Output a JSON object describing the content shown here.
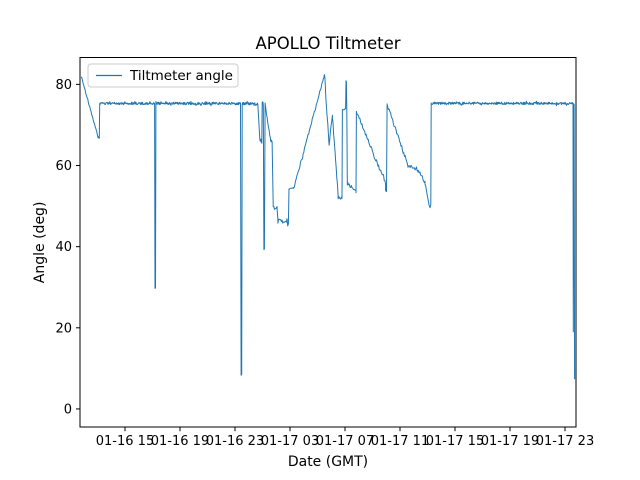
{
  "chart_data": {
    "type": "line",
    "title": "APOLLO Tiltmeter",
    "xlabel": "Date (GMT)",
    "ylabel": "Angle (deg)",
    "legend": [
      "Tiltmeter angle"
    ],
    "legend_position": "upper left",
    "line_color": "#1f77b4",
    "background_color": "#ffffff",
    "grid": false,
    "x_units": "hours since 01-16 00:00 (GMT)",
    "xlim": [
      11.727,
      47.8
    ],
    "ylim": [
      -4.5,
      86.6
    ],
    "xticks": {
      "values": [
        15,
        19,
        23,
        27,
        31,
        35,
        39,
        43,
        47
      ],
      "labels": [
        "01-16 15",
        "01-16 19",
        "01-16 23",
        "01-17 03",
        "01-17 07",
        "01-17 11",
        "01-17 15",
        "01-17 19",
        "01-17 23"
      ]
    },
    "yticks": {
      "values": [
        0,
        20,
        40,
        60,
        80
      ],
      "labels": [
        "0",
        "20",
        "40",
        "60",
        "80"
      ]
    },
    "series": [
      {
        "name": "Tiltmeter angle",
        "segments": [
          {
            "type": "noisy",
            "t0": 11.8,
            "t1": 12.98,
            "v0": 82.2,
            "v1": 67.7,
            "amp": 0.22,
            "step": 0.05
          },
          {
            "type": "pts",
            "pts": [
              [
                12.98,
                67.7
              ],
              [
                13.04,
                66.8
              ],
              [
                13.09,
                67.1
              ],
              [
                13.13,
                66.7
              ],
              [
                13.16,
                75.2
              ]
            ]
          },
          {
            "type": "noisy",
            "t0": 13.16,
            "t1": 17.15,
            "v0": 75.3,
            "v1": 75.3,
            "amp": 0.3,
            "step": 0.028
          },
          {
            "type": "pts",
            "pts": [
              [
                17.15,
                75.3
              ],
              [
                17.18,
                29.7
              ],
              [
                17.22,
                29.8
              ],
              [
                17.25,
                75.3
              ]
            ]
          },
          {
            "type": "noisy",
            "t0": 17.25,
            "t1": 23.4,
            "v0": 75.3,
            "v1": 75.3,
            "amp": 0.3,
            "step": 0.028
          },
          {
            "type": "pts",
            "pts": [
              [
                23.4,
                75.2
              ],
              [
                23.44,
                8.3
              ],
              [
                23.49,
                8.6
              ],
              [
                23.52,
                75.0
              ]
            ]
          },
          {
            "type": "noisy",
            "t0": 23.52,
            "t1": 24.66,
            "v0": 75.2,
            "v1": 75.2,
            "amp": 0.35,
            "step": 0.028
          },
          {
            "type": "pts",
            "pts": [
              [
                24.66,
                75.2
              ],
              [
                24.8,
                66.6
              ]
            ]
          },
          {
            "type": "noisy",
            "t0": 24.8,
            "t1": 24.95,
            "v0": 66.3,
            "v1": 65.9,
            "amp": 0.5,
            "step": 0.04
          },
          {
            "type": "pts",
            "pts": [
              [
                24.95,
                65.9
              ],
              [
                24.98,
                75.6
              ],
              [
                25.03,
                75.7
              ],
              [
                25.06,
                74.9
              ],
              [
                25.1,
                39.3
              ],
              [
                25.14,
                39.4
              ],
              [
                25.19,
                74.8
              ]
            ]
          },
          {
            "type": "noisy",
            "t0": 25.19,
            "t1": 25.58,
            "v0": 74.8,
            "v1": 66.4,
            "amp": 0.45,
            "step": 0.05
          },
          {
            "type": "noisy",
            "t0": 25.58,
            "t1": 25.7,
            "v0": 66.3,
            "v1": 65.9,
            "amp": 0.4,
            "step": 0.04
          },
          {
            "type": "pts",
            "pts": [
              [
                25.7,
                65.9
              ],
              [
                25.78,
                50.3
              ]
            ]
          },
          {
            "type": "noisy",
            "t0": 25.78,
            "t1": 26.06,
            "v0": 49.8,
            "v1": 49.2,
            "amp": 0.75,
            "step": 0.045
          },
          {
            "type": "pts",
            "pts": [
              [
                26.06,
                49.2
              ],
              [
                26.12,
                46.6
              ]
            ]
          },
          {
            "type": "noisy",
            "t0": 26.12,
            "t1": 26.88,
            "v0": 46.2,
            "v1": 45.7,
            "amp": 0.65,
            "step": 0.05
          },
          {
            "type": "pts",
            "pts": [
              [
                26.88,
                45.9
              ],
              [
                26.93,
                54.2
              ]
            ]
          },
          {
            "type": "noisy",
            "t0": 26.93,
            "t1": 27.25,
            "v0": 54.3,
            "v1": 54.0,
            "amp": 0.4,
            "step": 0.05
          },
          {
            "type": "noisy",
            "t0": 27.25,
            "t1": 29.47,
            "v0": 54.0,
            "v1": 81.9,
            "amp": 0.35,
            "step": 0.05
          },
          {
            "type": "pts",
            "pts": [
              [
                29.47,
                81.9
              ],
              [
                29.5,
                82.4
              ],
              [
                29.54,
                81.6
              ]
            ]
          },
          {
            "type": "noisy",
            "t0": 29.56,
            "t1": 29.84,
            "v0": 79.5,
            "v1": 65.0,
            "amp": 0.5,
            "step": 0.045
          },
          {
            "type": "noisy",
            "t0": 29.84,
            "t1": 30.08,
            "v0": 65.0,
            "v1": 72.5,
            "amp": 0.4,
            "step": 0.045
          },
          {
            "type": "noisy",
            "t0": 30.08,
            "t1": 30.5,
            "v0": 72.5,
            "v1": 52.6,
            "amp": 0.5,
            "step": 0.045
          },
          {
            "type": "noisy",
            "t0": 30.5,
            "t1": 30.78,
            "v0": 52.3,
            "v1": 51.9,
            "amp": 0.4,
            "step": 0.045
          },
          {
            "type": "pts",
            "pts": [
              [
                30.78,
                51.9
              ],
              [
                30.81,
                73.8
              ]
            ]
          },
          {
            "type": "noisy",
            "t0": 30.81,
            "t1": 31.04,
            "v0": 73.7,
            "v1": 74.0,
            "amp": 0.28,
            "step": 0.04
          },
          {
            "type": "pts",
            "pts": [
              [
                31.04,
                74.0
              ],
              [
                31.07,
                80.9
              ],
              [
                31.1,
                80.6
              ],
              [
                31.13,
                73.5
              ],
              [
                31.17,
                56.2
              ]
            ]
          },
          {
            "type": "noisy",
            "t0": 31.17,
            "t1": 31.8,
            "v0": 55.8,
            "v1": 53.3,
            "amp": 0.45,
            "step": 0.05
          },
          {
            "type": "pts",
            "pts": [
              [
                31.8,
                53.3
              ],
              [
                31.83,
                73.3
              ]
            ]
          },
          {
            "type": "noisy",
            "t0": 31.83,
            "t1": 33.95,
            "v0": 73.4,
            "v1": 55.6,
            "amp": 0.5,
            "step": 0.05
          },
          {
            "type": "pts",
            "pts": [
              [
                33.95,
                53.8
              ],
              [
                34.02,
                53.6
              ],
              [
                34.06,
                75.2
              ]
            ]
          },
          {
            "type": "noisy",
            "t0": 34.06,
            "t1": 35.53,
            "v0": 75.2,
            "v1": 60.4,
            "amp": 0.45,
            "step": 0.05
          },
          {
            "type": "noisy",
            "t0": 35.53,
            "t1": 36.3,
            "v0": 59.9,
            "v1": 59.0,
            "amp": 0.45,
            "step": 0.05
          },
          {
            "type": "noisy",
            "t0": 36.3,
            "t1": 36.82,
            "v0": 59.0,
            "v1": 55.9,
            "amp": 0.45,
            "step": 0.05
          },
          {
            "type": "noisy",
            "t0": 36.82,
            "t1": 37.12,
            "v0": 55.9,
            "v1": 50.1,
            "amp": 0.4,
            "step": 0.05
          },
          {
            "type": "pts",
            "pts": [
              [
                37.12,
                50.1
              ],
              [
                37.18,
                49.6
              ],
              [
                37.24,
                50.4
              ],
              [
                37.27,
                75.4
              ]
            ]
          },
          {
            "type": "noisy",
            "t0": 37.27,
            "t1": 47.58,
            "v0": 75.35,
            "v1": 75.3,
            "amp": 0.3,
            "step": 0.028
          },
          {
            "type": "pts",
            "pts": [
              [
                47.58,
                75.3
              ],
              [
                47.6,
                19.0
              ],
              [
                47.63,
                75.2
              ],
              [
                47.66,
                75.1
              ],
              [
                47.7,
                7.3
              ]
            ]
          }
        ]
      }
    ]
  }
}
